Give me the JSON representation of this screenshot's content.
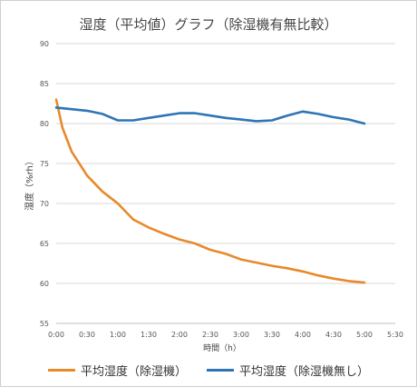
{
  "chart_data": {
    "type": "line",
    "title": "湿度（平均値）グラフ（除湿機有無比較）",
    "xlabel": "時間（h）",
    "ylabel": "湿度（%rh）",
    "ylim": [
      55,
      90
    ],
    "yticks": [
      55,
      60,
      65,
      70,
      75,
      80,
      85,
      90
    ],
    "xlim": [
      0,
      5.5
    ],
    "xticks": [
      {
        "v": 0,
        "label": "0:00"
      },
      {
        "v": 0.5,
        "label": "0:30"
      },
      {
        "v": 1,
        "label": "1:00"
      },
      {
        "v": 1.5,
        "label": "1:30"
      },
      {
        "v": 2,
        "label": "2:00"
      },
      {
        "v": 2.5,
        "label": "2:30"
      },
      {
        "v": 3,
        "label": "3:00"
      },
      {
        "v": 3.5,
        "label": "3:30"
      },
      {
        "v": 4,
        "label": "4:00"
      },
      {
        "v": 4.5,
        "label": "4:30"
      },
      {
        "v": 5,
        "label": "5:00"
      },
      {
        "v": 5.5,
        "label": "5:30"
      }
    ],
    "grid": true,
    "legend": "bottom",
    "series": [
      {
        "name": "平均湿度（除湿機）",
        "color": "#E8892B",
        "x": [
          0,
          0.1,
          0.25,
          0.5,
          0.75,
          1.0,
          1.25,
          1.5,
          1.75,
          2.0,
          2.25,
          2.5,
          2.75,
          3.0,
          3.25,
          3.5,
          3.75,
          4.0,
          4.25,
          4.5,
          4.75,
          5.0
        ],
        "y": [
          83,
          79.5,
          76.5,
          73.5,
          71.5,
          70,
          68,
          67,
          66.2,
          65.5,
          65,
          64.2,
          63.7,
          63,
          62.6,
          62.2,
          61.9,
          61.5,
          61,
          60.6,
          60.3,
          60.1
        ]
      },
      {
        "name": "平均湿度（除湿機無し）",
        "color": "#2E75B6",
        "x": [
          0,
          0.25,
          0.5,
          0.75,
          1.0,
          1.25,
          1.5,
          1.75,
          2.0,
          2.25,
          2.5,
          2.75,
          3.0,
          3.25,
          3.5,
          3.75,
          4.0,
          4.25,
          4.5,
          4.75,
          5.0
        ],
        "y": [
          82,
          81.8,
          81.6,
          81.2,
          80.4,
          80.4,
          80.7,
          81,
          81.3,
          81.3,
          81,
          80.7,
          80.5,
          80.3,
          80.4,
          81,
          81.5,
          81.2,
          80.8,
          80.5,
          80
        ]
      }
    ]
  }
}
